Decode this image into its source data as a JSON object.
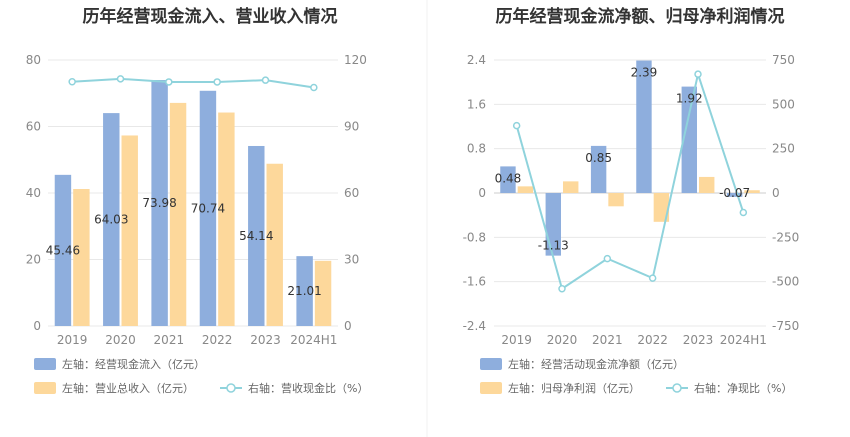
{
  "colors": {
    "bar_primary": "#8eaedd",
    "bar_secondary": "#fdd89b",
    "line": "#8fd3dc",
    "grid": "#e8e8e8",
    "axis_text": "#888888",
    "title": "#333333"
  },
  "chart_data": [
    {
      "type": "bar",
      "title": "历年经营现金流入、营业收入情况",
      "categories": [
        "2019",
        "2020",
        "2021",
        "2022",
        "2023",
        "2024H1"
      ],
      "left_axis": {
        "min": 0,
        "max": 80,
        "ticks": [
          0,
          20,
          40,
          60,
          80
        ]
      },
      "right_axis": {
        "min": 0,
        "max": 120,
        "ticks": [
          0,
          30,
          60,
          90,
          120
        ]
      },
      "series": [
        {
          "name": "左轴：经营现金流入（亿元）",
          "kind": "bar",
          "axis": "left",
          "color": "#8eaedd",
          "values": [
            45.46,
            64.03,
            73.98,
            70.74,
            54.14,
            21.01
          ],
          "labels": [
            "45.46",
            "64.03",
            "73.98",
            "70.74",
            "54.14",
            "21.01"
          ]
        },
        {
          "name": "左轴：营业总收入（亿元）",
          "kind": "bar",
          "axis": "left",
          "color": "#fdd89b",
          "values": [
            41.2,
            57.3,
            67.1,
            64.2,
            48.8,
            19.6
          ]
        },
        {
          "name": "右轴：营收现金比（%）",
          "kind": "line",
          "axis": "right",
          "color": "#8fd3dc",
          "values": [
            110.2,
            111.5,
            110.1,
            110.1,
            110.9,
            107.6
          ]
        }
      ],
      "legend": [
        "左轴：经营现金流入（亿元）",
        "左轴：营业总收入（亿元）",
        "右轴：营收现金比（%）"
      ],
      "legend_position": "bottom"
    },
    {
      "type": "bar",
      "title": "历年经营现金流净额、归母净利润情况",
      "categories": [
        "2019",
        "2020",
        "2021",
        "2022",
        "2023",
        "2024H1"
      ],
      "left_axis": {
        "min": -2.4,
        "max": 2.4,
        "ticks": [
          -2.4,
          -1.6,
          -0.8,
          0,
          0.8,
          1.6,
          2.4
        ]
      },
      "right_axis": {
        "min": -750,
        "max": 750,
        "ticks": [
          -750,
          -500,
          -250,
          0,
          250,
          500,
          750
        ]
      },
      "series": [
        {
          "name": "左轴：经营活动现金流净额（亿元）",
          "kind": "bar",
          "axis": "left",
          "color": "#8eaedd",
          "values": [
            0.48,
            -1.13,
            0.85,
            2.39,
            1.92,
            -0.07
          ],
          "labels": [
            "0.48",
            "-1.13",
            "0.85",
            "2.39",
            "1.92",
            "-0.07"
          ]
        },
        {
          "name": "左轴：归母净利润（亿元）",
          "kind": "bar",
          "axis": "left",
          "color": "#fdd89b",
          "values": [
            0.12,
            0.21,
            -0.24,
            -0.52,
            0.29,
            0.05
          ]
        },
        {
          "name": "右轴：净现比（%）",
          "kind": "line",
          "axis": "right",
          "color": "#8fd3dc",
          "values": [
            380,
            -540,
            -370,
            -480,
            670,
            -110
          ]
        }
      ],
      "legend": [
        "左轴：经营活动现金流净额（亿元）",
        "左轴：归母净利润（亿元）",
        "右轴：净现比（%）"
      ],
      "legend_position": "bottom"
    }
  ]
}
